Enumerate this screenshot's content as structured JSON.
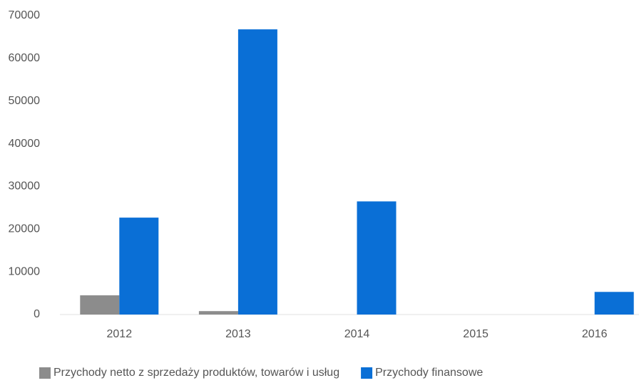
{
  "chart_data": {
    "type": "bar",
    "categories": [
      "2012",
      "2013",
      "2014",
      "2015",
      "2016"
    ],
    "series": [
      {
        "name": "Przychody netto z sprzedaży produktów, towarów i usług",
        "color": "#8c8c8c",
        "values": [
          4500,
          800,
          0,
          0,
          0
        ]
      },
      {
        "name": "Przychody finansowe",
        "color": "#0a6fd6",
        "values": [
          22700,
          66800,
          26500,
          0,
          5300
        ]
      }
    ],
    "ylim": [
      0,
      70000
    ],
    "yticks": [
      0,
      10000,
      20000,
      30000,
      40000,
      50000,
      60000,
      70000
    ],
    "grid": false,
    "legend": "bottom"
  }
}
